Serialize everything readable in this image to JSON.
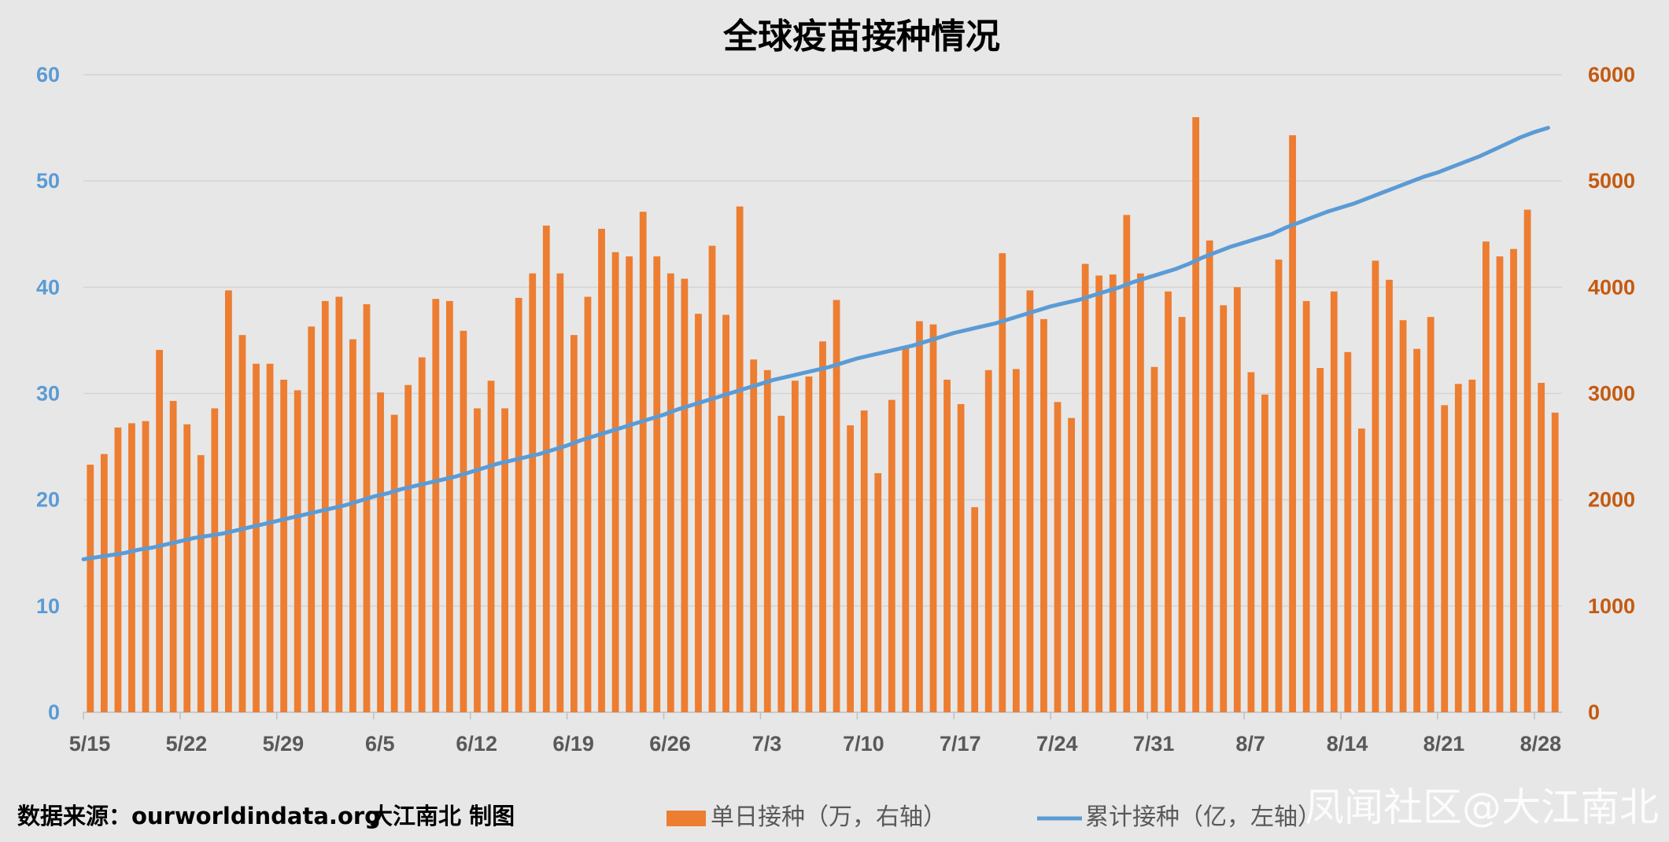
{
  "footer": {
    "source": "数据来源：ourworldindata.org",
    "credit": "大江南北 制图"
  },
  "watermark": "凤闻社区@大江南北",
  "chart_data": {
    "type": "bar+line",
    "title": "全球疫苗接种情况",
    "colors": {
      "bar": "#ed7d31",
      "line": "#5b9bd5",
      "left_axis": "#5b9bd5",
      "right_axis": "#c55a11",
      "grid": "#d4d4d4",
      "background": "#e7e7e7"
    },
    "y_left": {
      "min": 0,
      "max": 60,
      "ticks": [
        "0",
        "10",
        "20",
        "30",
        "40",
        "50",
        "60"
      ]
    },
    "y_right": {
      "min": 0,
      "max": 6000,
      "ticks": [
        "0",
        "1000",
        "2000",
        "3000",
        "4000",
        "5000",
        "6000"
      ]
    },
    "x_tick_labels": [
      "5/15",
      "5/22",
      "5/29",
      "6/5",
      "6/12",
      "6/19",
      "6/26",
      "7/3",
      "7/10",
      "7/17",
      "7/24",
      "7/31",
      "8/7",
      "8/14",
      "8/21",
      "8/28"
    ],
    "x_tick_every": 7,
    "grid": true,
    "legend_position": "bottom",
    "series": [
      {
        "name": "单日接种（万，右轴）",
        "type": "bar",
        "axis": "right",
        "values": [
          2330,
          2430,
          2680,
          2720,
          2740,
          3410,
          2930,
          2710,
          2420,
          2860,
          3970,
          3550,
          3280,
          3280,
          3130,
          3030,
          3630,
          3870,
          3910,
          3510,
          3840,
          3010,
          2800,
          3080,
          3340,
          3890,
          3870,
          3590,
          2860,
          3120,
          2860,
          3900,
          4130,
          4580,
          4130,
          3550,
          3910,
          4550,
          4330,
          4290,
          4710,
          4290,
          4130,
          4080,
          3750,
          4390,
          3740,
          4760,
          3320,
          3220,
          2790,
          3120,
          3160,
          3490,
          3880,
          2700,
          2840,
          2250,
          2940,
          3430,
          3680,
          3650,
          3130,
          2900,
          1930,
          3220,
          4320,
          3230,
          3970,
          3700,
          2920,
          2770,
          4220,
          4110,
          4120,
          4680,
          4130,
          3250,
          3960,
          3720,
          5600,
          4440,
          3830,
          4000,
          3200,
          2990,
          4260,
          5430,
          3870,
          3240,
          3960,
          3390,
          2670,
          4250,
          4070,
          3690,
          3420,
          3720,
          2890,
          3090,
          3130,
          4430,
          4290,
          4360,
          4730,
          3100,
          2820
        ]
      },
      {
        "name": "累计接种（亿，左轴）",
        "type": "line",
        "axis": "left",
        "values": [
          14.4,
          14.6,
          14.8,
          15.0,
          15.3,
          15.5,
          15.8,
          16.1,
          16.4,
          16.6,
          16.8,
          17.1,
          17.4,
          17.7,
          18.0,
          18.3,
          18.6,
          18.9,
          19.2,
          19.5,
          19.9,
          20.3,
          20.6,
          21.0,
          21.3,
          21.6,
          21.9,
          22.2,
          22.6,
          23.0,
          23.4,
          23.7,
          24.0,
          24.3,
          24.7,
          25.1,
          25.6,
          26.0,
          26.4,
          26.8,
          27.2,
          27.6,
          28.0,
          28.5,
          28.9,
          29.3,
          29.7,
          30.1,
          30.5,
          30.9,
          31.3,
          31.6,
          31.9,
          32.2,
          32.5,
          32.9,
          33.3,
          33.6,
          33.9,
          34.2,
          34.5,
          34.9,
          35.3,
          35.7,
          36.0,
          36.3,
          36.6,
          37.0,
          37.4,
          37.8,
          38.2,
          38.5,
          38.8,
          39.2,
          39.6,
          40.0,
          40.5,
          40.9,
          41.3,
          41.7,
          42.2,
          42.8,
          43.3,
          43.8,
          44.2,
          44.6,
          45.0,
          45.6,
          46.1,
          46.6,
          47.1,
          47.5,
          47.9,
          48.4,
          48.9,
          49.4,
          49.9,
          50.4,
          50.8,
          51.3,
          51.8,
          52.3,
          52.9,
          53.5,
          54.1,
          54.6,
          55.0
        ]
      }
    ]
  }
}
